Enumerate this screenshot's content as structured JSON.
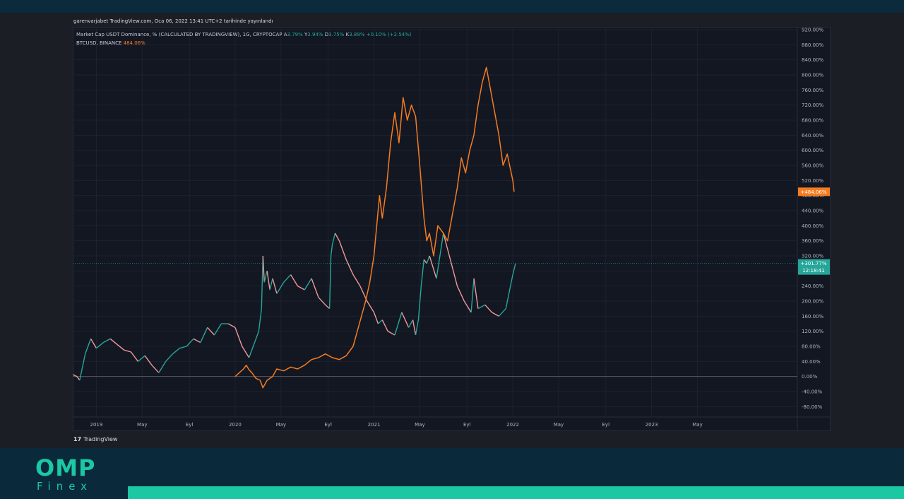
{
  "credit": "garenvarjabet TradingView.com, Oca 06, 2022 13:41 UTC+2 tarihinde yayınlandı",
  "legend": {
    "line1_title": "Market Cap USDT Dominance, % (CALCULATED BY TRADINGVIEW), 1G, CRYPTOCAP",
    "ohlc": [
      {
        "k": "A",
        "v": "3.79%"
      },
      {
        "k": "Y",
        "v": "3.94%"
      },
      {
        "k": "D",
        "v": "3.75%"
      },
      {
        "k": "K",
        "v": "3.89%"
      }
    ],
    "change": "+0.10% (+2.54%)",
    "line2_title": "BTCUSD, BINANCE",
    "line2_value": "484.06%"
  },
  "brand": {
    "tradingview": "TradingView",
    "logo_main": "OMP",
    "logo_sub": "Finex"
  },
  "colors": {
    "btc": "#f57c20",
    "usdt_up": "#26a69a",
    "usdt_down": "#ef9a9a",
    "accent": "#1cc7a4",
    "background": "#131722"
  },
  "chart_data": {
    "type": "line",
    "y_unit": "%",
    "ylim": [
      -100,
      920
    ],
    "y_ticks": [
      "920.00%",
      "880.00%",
      "840.00%",
      "800.00%",
      "760.00%",
      "720.00%",
      "680.00%",
      "640.00%",
      "600.00%",
      "560.00%",
      "520.00%",
      "480.00%",
      "440.00%",
      "400.00%",
      "360.00%",
      "320.00%",
      "280.00%",
      "240.00%",
      "200.00%",
      "160.00%",
      "120.00%",
      "80.00%",
      "40.00%",
      "0.00%",
      "-40.00%",
      "-80.00%"
    ],
    "x_ticks": [
      {
        "label": "2019",
        "x": 2019.0
      },
      {
        "label": "May",
        "x": 2019.33
      },
      {
        "label": "Eyl",
        "x": 2019.67
      },
      {
        "label": "2020",
        "x": 2020.0
      },
      {
        "label": "May",
        "x": 2020.33
      },
      {
        "label": "Eyl",
        "x": 2020.67
      },
      {
        "label": "2021",
        "x": 2021.0
      },
      {
        "label": "May",
        "x": 2021.33
      },
      {
        "label": "Eyl",
        "x": 2021.67
      },
      {
        "label": "2022",
        "x": 2022.0
      },
      {
        "label": "May",
        "x": 2022.33
      },
      {
        "label": "Eyl",
        "x": 2022.67
      },
      {
        "label": "2023",
        "x": 2023.0
      },
      {
        "label": "May",
        "x": 2023.33
      }
    ],
    "xlim": [
      2018.83,
      2024.05
    ],
    "grid": true,
    "last_value_labels": {
      "btc": "+484.06%",
      "usdt_value": "+301.77%",
      "usdt_time": "12:18:41"
    },
    "series": [
      {
        "name": "Market Cap USDT Dominance",
        "color": "#26a69a",
        "x": [
          2018.83,
          2018.86,
          2018.88,
          2018.92,
          2018.96,
          2019.0,
          2019.05,
          2019.1,
          2019.15,
          2019.2,
          2019.25,
          2019.3,
          2019.35,
          2019.4,
          2019.45,
          2019.5,
          2019.55,
          2019.6,
          2019.65,
          2019.7,
          2019.75,
          2019.8,
          2019.85,
          2019.9,
          2019.95,
          2020.0,
          2020.05,
          2020.1,
          2020.14,
          2020.17,
          2020.19,
          2020.2,
          2020.21,
          2020.23,
          2020.25,
          2020.27,
          2020.3,
          2020.35,
          2020.4,
          2020.45,
          2020.5,
          2020.55,
          2020.6,
          2020.65,
          2020.68,
          2020.69,
          2020.7,
          2020.72,
          2020.75,
          2020.8,
          2020.85,
          2020.9,
          2020.95,
          2021.0,
          2021.03,
          2021.06,
          2021.1,
          2021.15,
          2021.2,
          2021.25,
          2021.28,
          2021.3,
          2021.32,
          2021.34,
          2021.36,
          2021.38,
          2021.4,
          2021.45,
          2021.5,
          2021.55,
          2021.6,
          2021.65,
          2021.7,
          2021.72,
          2021.75,
          2021.8,
          2021.85,
          2021.9,
          2021.95,
          2022.0,
          2022.02
        ],
        "y": [
          5,
          0,
          -10,
          60,
          100,
          75,
          90,
          100,
          85,
          70,
          65,
          40,
          55,
          30,
          10,
          40,
          60,
          75,
          80,
          100,
          90,
          130,
          110,
          140,
          140,
          130,
          80,
          50,
          90,
          120,
          180,
          320,
          250,
          280,
          230,
          260,
          220,
          250,
          270,
          240,
          230,
          260,
          210,
          190,
          180,
          320,
          350,
          380,
          360,
          310,
          270,
          240,
          200,
          170,
          140,
          150,
          120,
          110,
          170,
          130,
          150,
          110,
          150,
          240,
          310,
          300,
          320,
          260,
          380,
          310,
          240,
          200,
          170,
          260,
          180,
          190,
          170,
          160,
          180,
          270,
          300
        ]
      },
      {
        "name": "BTCUSD, BINANCE",
        "color": "#f57c20",
        "x": [
          2020.0,
          2020.03,
          2020.06,
          2020.08,
          2020.1,
          2020.12,
          2020.15,
          2020.18,
          2020.2,
          2020.23,
          2020.27,
          2020.3,
          2020.35,
          2020.4,
          2020.45,
          2020.5,
          2020.55,
          2020.6,
          2020.65,
          2020.7,
          2020.75,
          2020.8,
          2020.85,
          2020.88,
          2020.91,
          2020.94,
          2020.97,
          2021.0,
          2021.02,
          2021.04,
          2021.06,
          2021.09,
          2021.12,
          2021.15,
          2021.18,
          2021.21,
          2021.24,
          2021.27,
          2021.3,
          2021.33,
          2021.36,
          2021.38,
          2021.4,
          2021.43,
          2021.46,
          2021.5,
          2021.53,
          2021.56,
          2021.6,
          2021.63,
          2021.66,
          2021.69,
          2021.72,
          2021.75,
          2021.78,
          2021.81,
          2021.84,
          2021.87,
          2021.9,
          2021.93,
          2021.96,
          2022.0,
          2022.01
        ],
        "y": [
          0,
          10,
          20,
          30,
          18,
          10,
          -5,
          -10,
          -30,
          -10,
          0,
          20,
          15,
          25,
          20,
          30,
          45,
          50,
          60,
          50,
          45,
          55,
          80,
          120,
          160,
          200,
          250,
          320,
          400,
          480,
          420,
          500,
          620,
          700,
          620,
          740,
          680,
          720,
          690,
          560,
          420,
          360,
          380,
          320,
          400,
          380,
          360,
          420,
          500,
          580,
          540,
          600,
          640,
          720,
          780,
          820,
          760,
          700,
          640,
          560,
          590,
          520,
          490
        ]
      }
    ]
  }
}
